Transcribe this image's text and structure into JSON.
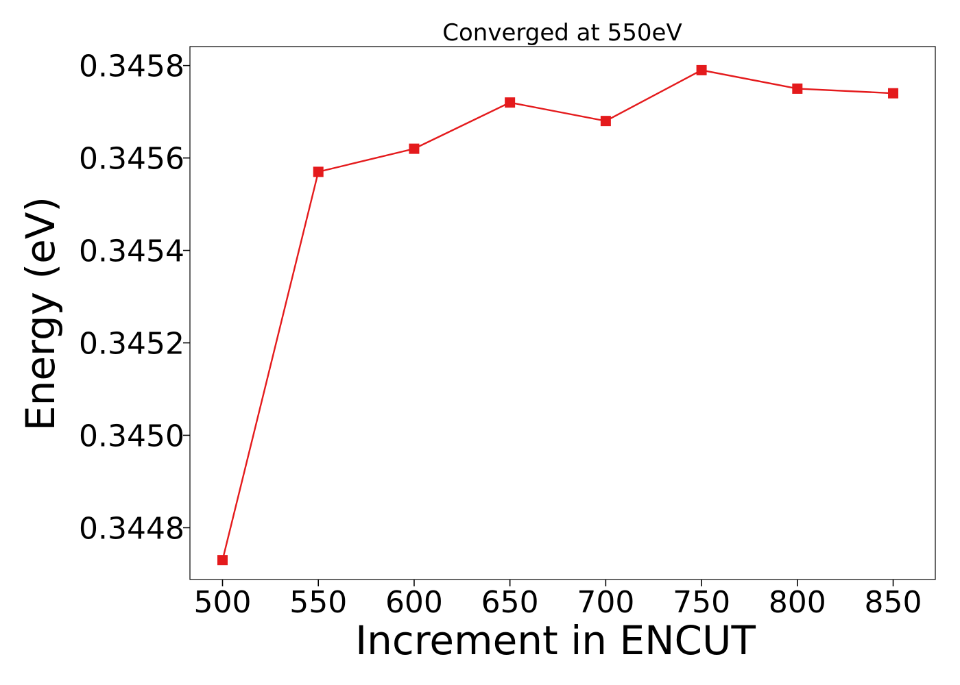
{
  "chart_data": {
    "type": "line",
    "title": "Converged at 550eV",
    "xlabel": "Increment in ENCUT",
    "ylabel": "Energy (eV)",
    "x": [
      500,
      550,
      600,
      650,
      700,
      750,
      800,
      850
    ],
    "series": [
      {
        "values": [
          0.34473,
          0.34557,
          0.34562,
          0.34572,
          0.34568,
          0.34579,
          0.34575,
          0.34574
        ],
        "color": "#e41a1c",
        "marker": "square"
      }
    ],
    "xlim": [
      483,
      872
    ],
    "ylim": [
      0.344688,
      0.345841
    ],
    "xticks": [
      500,
      550,
      600,
      650,
      700,
      750,
      800,
      850
    ],
    "xtick_labels": [
      "500",
      "550",
      "600",
      "650",
      "700",
      "750",
      "800",
      "850"
    ],
    "yticks": [
      0.3448,
      0.345,
      0.3452,
      0.3454,
      0.3456,
      0.3458
    ],
    "ytick_labels": [
      "0.3448",
      "0.3450",
      "0.3452",
      "0.3454",
      "0.3456",
      "0.3458"
    ],
    "grid": false,
    "legend": "none"
  }
}
